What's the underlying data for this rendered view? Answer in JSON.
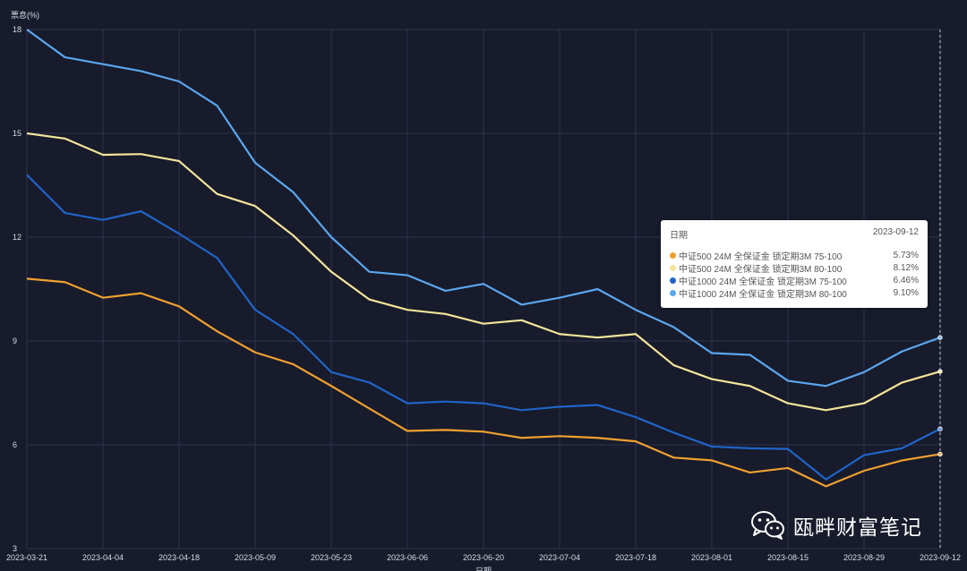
{
  "chart_data": {
    "type": "line",
    "ylabel": "票息(%)",
    "xlabel": "日期",
    "ylim": [
      3,
      18
    ],
    "yticks": [
      3,
      6,
      9,
      12,
      15,
      18
    ],
    "x_tick_labels": [
      "2023-03-21",
      "2023-04-04",
      "2023-04-18",
      "2023-05-09",
      "2023-05-23",
      "2023-06-06",
      "2023-06-20",
      "2023-07-04",
      "2023-07-18",
      "2023-08-01",
      "2023-08-15",
      "2023-08-29",
      "2023-09-12"
    ],
    "n_points": 25,
    "series": [
      {
        "name": "中证500 24M 全保证金 锁定期3M 75-100",
        "color": "#f0a030",
        "values": [
          10.8,
          10.7,
          10.25,
          10.38,
          10.0,
          9.28,
          8.67,
          8.33,
          7.7,
          7.05,
          6.4,
          6.43,
          6.38,
          6.2,
          6.25,
          6.2,
          6.1,
          5.63,
          5.55,
          5.2,
          5.33,
          4.8,
          5.25,
          5.55,
          5.73
        ]
      },
      {
        "name": "中证500 24M 全保证金 锁定期3M 80-100",
        "color": "#f3e49a",
        "values": [
          15.0,
          14.85,
          14.38,
          14.4,
          14.2,
          13.25,
          12.9,
          12.05,
          11.0,
          10.2,
          9.9,
          9.78,
          9.5,
          9.6,
          9.2,
          9.1,
          9.2,
          8.3,
          7.9,
          7.7,
          7.2,
          7.0,
          7.2,
          7.8,
          8.12
        ]
      },
      {
        "name": "中证1000 24M 全保证金 锁定期3M 75-100",
        "color": "#2064c8",
        "values": [
          13.8,
          12.7,
          12.5,
          12.75,
          12.1,
          11.4,
          9.9,
          9.2,
          8.1,
          7.8,
          7.2,
          7.25,
          7.2,
          7.0,
          7.1,
          7.15,
          6.8,
          6.35,
          5.95,
          5.9,
          5.88,
          5.0,
          5.7,
          5.9,
          6.46
        ]
      },
      {
        "name": "中证1000 24M 全保证金 锁定期3M 80-100",
        "color": "#5ba6ee",
        "values": [
          18.0,
          17.2,
          17.0,
          16.8,
          16.5,
          15.8,
          14.15,
          13.3,
          12.0,
          11.0,
          10.9,
          10.45,
          10.65,
          10.05,
          10.25,
          10.5,
          9.9,
          9.4,
          8.65,
          8.6,
          7.85,
          7.7,
          8.1,
          8.7,
          9.1
        ]
      }
    ]
  },
  "tooltip": {
    "header_label": "日期",
    "date": "2023-09-12",
    "rows": [
      {
        "name": "中证500 24M 全保证金 锁定期3M 75-100",
        "value": "5.73%",
        "color": "#f0a030"
      },
      {
        "name": "中证500 24M 全保证金 锁定期3M 80-100",
        "value": "8.12%",
        "color": "#f3e49a"
      },
      {
        "name": "中证1000 24M 全保证金 锁定期3M 75-100",
        "value": "6.46%",
        "color": "#2064c8"
      },
      {
        "name": "中证1000 24M 全保证金 锁定期3M 80-100",
        "value": "9.10%",
        "color": "#5ba6ee"
      }
    ]
  },
  "watermark": {
    "text": "瓯畔财富笔记",
    "icon": "wechat-icon"
  },
  "colors": {
    "background": "#171b2b",
    "grid": "#2c3350"
  }
}
